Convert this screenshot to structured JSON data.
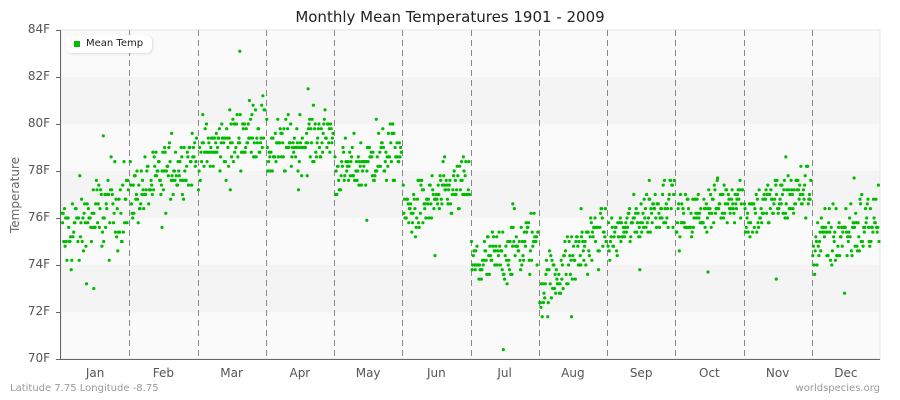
{
  "title": "Monthly Mean Temperatures 1901 - 2009",
  "footer": {
    "location": "Latitude 7.75 Longitude -8.75",
    "source": "worldspecies.org"
  },
  "legend": {
    "label": "Mean Temp",
    "color": "#00bb00"
  },
  "colors": {
    "point": "#00bb00",
    "band_dark": "#f4f4f4",
    "band_light": "#fafafa",
    "axis": "#666666",
    "divider": "#888888"
  },
  "chart_data": {
    "type": "scatter",
    "title": "Monthly Mean Temperatures 1901 - 2009",
    "xlabel": "",
    "ylabel": "Temperature",
    "ylim": [
      70,
      84
    ],
    "yticks": [
      "70F",
      "72F",
      "74F",
      "76F",
      "78F",
      "80F",
      "82F",
      "84F"
    ],
    "categories": [
      "Jan",
      "Feb",
      "Mar",
      "Apr",
      "May",
      "Jun",
      "Jul",
      "Aug",
      "Sep",
      "Oct",
      "Nov",
      "Dec"
    ],
    "legend": [
      "Mean Temp"
    ],
    "legend_position": "top-left",
    "grid": "alternating horizontal bands, dashed vertical month dividers",
    "points_per_month": 109,
    "series": [
      {
        "name": "Mean Temp",
        "months": [
          {
            "month": "Jan",
            "mean": 76.0,
            "trend": 0.8,
            "spread": 1.3,
            "min": 73.0,
            "max": 79.5
          },
          {
            "month": "Feb",
            "mean": 77.8,
            "trend": 0.9,
            "spread": 0.9,
            "min": 75.6,
            "max": 79.6
          },
          {
            "month": "Mar",
            "mean": 79.3,
            "trend": 0.6,
            "spread": 0.9,
            "min": 77.2,
            "max": 83.1
          },
          {
            "month": "Apr",
            "mean": 79.2,
            "trend": 0.4,
            "spread": 0.8,
            "min": 77.2,
            "max": 81.5
          },
          {
            "month": "May",
            "mean": 78.4,
            "trend": 0.5,
            "spread": 0.8,
            "min": 75.9,
            "max": 80.2
          },
          {
            "month": "Jun",
            "mean": 76.8,
            "trend": 0.7,
            "spread": 0.8,
            "min": 74.4,
            "max": 78.6
          },
          {
            "month": "Jul",
            "mean": 74.5,
            "trend": 0.6,
            "spread": 0.9,
            "min": 70.4,
            "max": 76.6
          },
          {
            "month": "Aug",
            "mean": 74.3,
            "trend": 1.4,
            "spread": 0.9,
            "min": 71.8,
            "max": 76.4
          },
          {
            "month": "Sep",
            "mean": 76.0,
            "trend": 1.0,
            "spread": 0.7,
            "min": 73.8,
            "max": 77.6
          },
          {
            "month": "Oct",
            "mean": 76.4,
            "trend": 0.6,
            "spread": 0.7,
            "min": 73.7,
            "max": 77.7
          },
          {
            "month": "Nov",
            "mean": 76.7,
            "trend": 0.6,
            "spread": 0.8,
            "min": 73.4,
            "max": 78.6
          },
          {
            "month": "Dec",
            "mean": 75.4,
            "trend": 0.6,
            "spread": 1.0,
            "min": 72.8,
            "max": 77.7
          }
        ]
      }
    ]
  }
}
